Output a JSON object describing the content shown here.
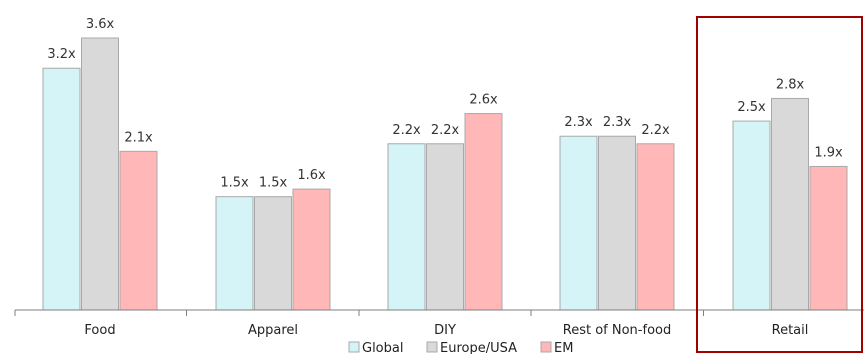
{
  "chart_data": {
    "type": "bar",
    "categories": [
      "Food",
      "Apparel",
      "DIY",
      "Rest of Non-food",
      "Retail"
    ],
    "series": [
      {
        "name": "Global",
        "values": [
          3.2,
          1.5,
          2.2,
          2.3,
          2.5
        ],
        "labels": [
          "3.2x",
          "1.5x",
          "2.2x",
          "2.3x",
          "2.5x"
        ],
        "color": "#D4F4F7",
        "stroke": "#A9A9A9"
      },
      {
        "name": "Europe/USA",
        "values": [
          3.6,
          1.5,
          2.2,
          2.3,
          2.8
        ],
        "labels": [
          "3.6x",
          "1.5x",
          "2.2x",
          "2.3x",
          "2.8x"
        ],
        "color": "#D9D9D9",
        "stroke": "#A9A9A9"
      },
      {
        "name": "EM",
        "values": [
          2.1,
          1.6,
          2.6,
          2.2,
          1.9
        ],
        "labels": [
          "2.1x",
          "1.6x",
          "2.6x",
          "2.2x",
          "1.9x"
        ],
        "color": "#FFB7B7",
        "stroke": "#A9A9A9"
      }
    ],
    "ylim": [
      0,
      3.6
    ],
    "grid": false,
    "legend": "bottom-center",
    "highlight": {
      "category": "Retail",
      "color": "#A00000"
    }
  }
}
